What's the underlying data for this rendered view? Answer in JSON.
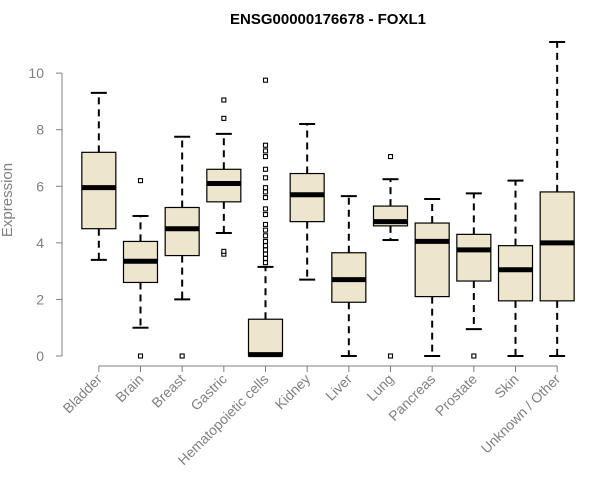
{
  "chart_data": {
    "type": "boxplot",
    "title": "ENSG00000176678 - FOXL1",
    "xlabel": "",
    "ylabel": "Expression",
    "ylim": [
      0,
      11.1
    ],
    "yticks": [
      0,
      2,
      4,
      6,
      8,
      10
    ],
    "grid": false,
    "box_fill": "#ede6cc",
    "box_stroke": "#000000",
    "axis_color": "#808080",
    "categories": [
      "Bladder",
      "Brain",
      "Breast",
      "Gastric",
      "Hematopoietic cells",
      "Kidney",
      "Liver",
      "Lung",
      "Pancreas",
      "Prostate",
      "Skin",
      "Unknown / Other"
    ],
    "boxes": [
      {
        "whisker_low": 3.4,
        "q1": 4.5,
        "median": 5.95,
        "q3": 7.2,
        "whisker_high": 9.3,
        "outliers": []
      },
      {
        "whisker_low": 1.0,
        "q1": 2.6,
        "median": 3.35,
        "q3": 4.05,
        "whisker_high": 4.95,
        "outliers": [
          0.0,
          6.2
        ]
      },
      {
        "whisker_low": 2.0,
        "q1": 3.55,
        "median": 4.5,
        "q3": 5.25,
        "whisker_high": 7.75,
        "outliers": [
          0.0
        ]
      },
      {
        "whisker_low": 4.35,
        "q1": 5.45,
        "median": 6.1,
        "q3": 6.6,
        "whisker_high": 7.85,
        "outliers": [
          3.6,
          3.7,
          8.4,
          9.05
        ]
      },
      {
        "whisker_low": 0.0,
        "q1": 0.0,
        "median": 0.05,
        "q3": 1.3,
        "whisker_high": 3.15,
        "outliers": [
          3.3,
          3.45,
          3.6,
          3.75,
          3.9,
          4.05,
          4.25,
          4.45,
          4.65,
          5.0,
          5.2,
          5.6,
          5.8,
          5.95,
          6.3,
          6.6,
          7.05,
          7.25,
          7.45,
          9.75
        ]
      },
      {
        "whisker_low": 2.7,
        "q1": 4.75,
        "median": 5.7,
        "q3": 6.45,
        "whisker_high": 8.2,
        "outliers": []
      },
      {
        "whisker_low": 0.0,
        "q1": 1.9,
        "median": 2.7,
        "q3": 3.65,
        "whisker_high": 5.65,
        "outliers": []
      },
      {
        "whisker_low": 4.1,
        "q1": 4.6,
        "median": 4.75,
        "q3": 5.3,
        "whisker_high": 6.25,
        "outliers": [
          0.0,
          7.05
        ]
      },
      {
        "whisker_low": 0.0,
        "q1": 2.1,
        "median": 4.05,
        "q3": 4.7,
        "whisker_high": 5.55,
        "outliers": []
      },
      {
        "whisker_low": 0.95,
        "q1": 2.65,
        "median": 3.75,
        "q3": 4.3,
        "whisker_high": 5.75,
        "outliers": [
          0.0
        ]
      },
      {
        "whisker_low": 0.0,
        "q1": 1.95,
        "median": 3.05,
        "q3": 3.9,
        "whisker_high": 6.2,
        "outliers": []
      },
      {
        "whisker_low": 0.0,
        "q1": 1.95,
        "median": 4.0,
        "q3": 5.8,
        "whisker_high": 11.1,
        "outliers": []
      }
    ]
  }
}
